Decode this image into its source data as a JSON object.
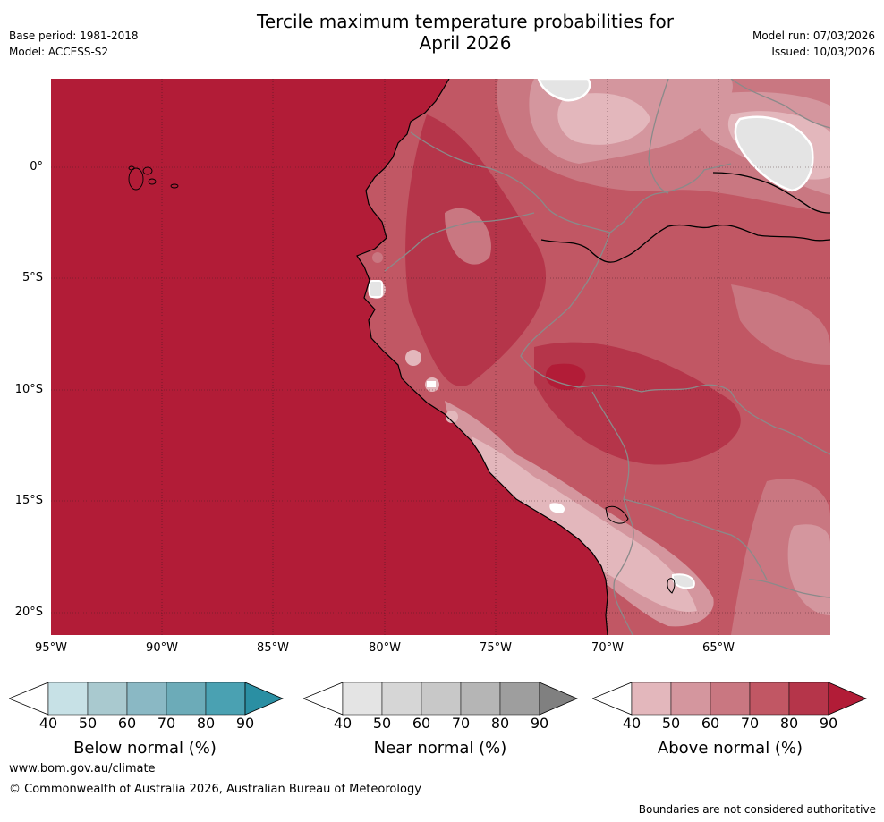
{
  "title": {
    "line1": "Tercile maximum temperature probabilities for",
    "line2": "April 2026"
  },
  "meta": {
    "base_period": "Base period: 1981-2018",
    "model": "Model: ACCESS-S2",
    "model_run": "Model run: 07/03/2026",
    "issued": "Issued: 10/03/2026"
  },
  "map": {
    "lon_range": [
      -95,
      -60
    ],
    "lat_range": [
      -21,
      4
    ],
    "lat_labels": [
      "0°",
      "5°S",
      "10°S",
      "15°S",
      "20°S"
    ],
    "lon_labels": [
      "95°W",
      "90°W",
      "85°W",
      "80°W",
      "75°W",
      "70°W",
      "65°W"
    ],
    "ocean_color": "#b21c37"
  },
  "colorbars": [
    {
      "name": "below",
      "label": "Below normal (%)",
      "ticks": [
        "40",
        "50",
        "60",
        "70",
        "80",
        "90"
      ],
      "colors": [
        "#c7e1e6",
        "#a9c9cf",
        "#8ab8c4",
        "#6cabb8",
        "#4aa1b2",
        "#2a8fa3"
      ]
    },
    {
      "name": "near",
      "label": "Near normal (%)",
      "ticks": [
        "40",
        "50",
        "60",
        "70",
        "80",
        "90"
      ],
      "colors": [
        "#e4e4e4",
        "#d6d6d6",
        "#c8c8c8",
        "#b5b5b5",
        "#9e9e9e",
        "#808080"
      ]
    },
    {
      "name": "above",
      "label": "Above normal (%)",
      "ticks": [
        "40",
        "50",
        "60",
        "70",
        "80",
        "90"
      ],
      "colors": [
        "#e3b7bc",
        "#d4969e",
        "#c97781",
        "#c15764",
        "#b5354a",
        "#b21c37"
      ]
    }
  ],
  "footer": {
    "url": "www.bom.gov.au/climate",
    "copyright": "© Commonwealth of Australia 2026, Australian Bureau of Meteorology",
    "disclaimer": "Boundaries are not considered authoritative"
  }
}
